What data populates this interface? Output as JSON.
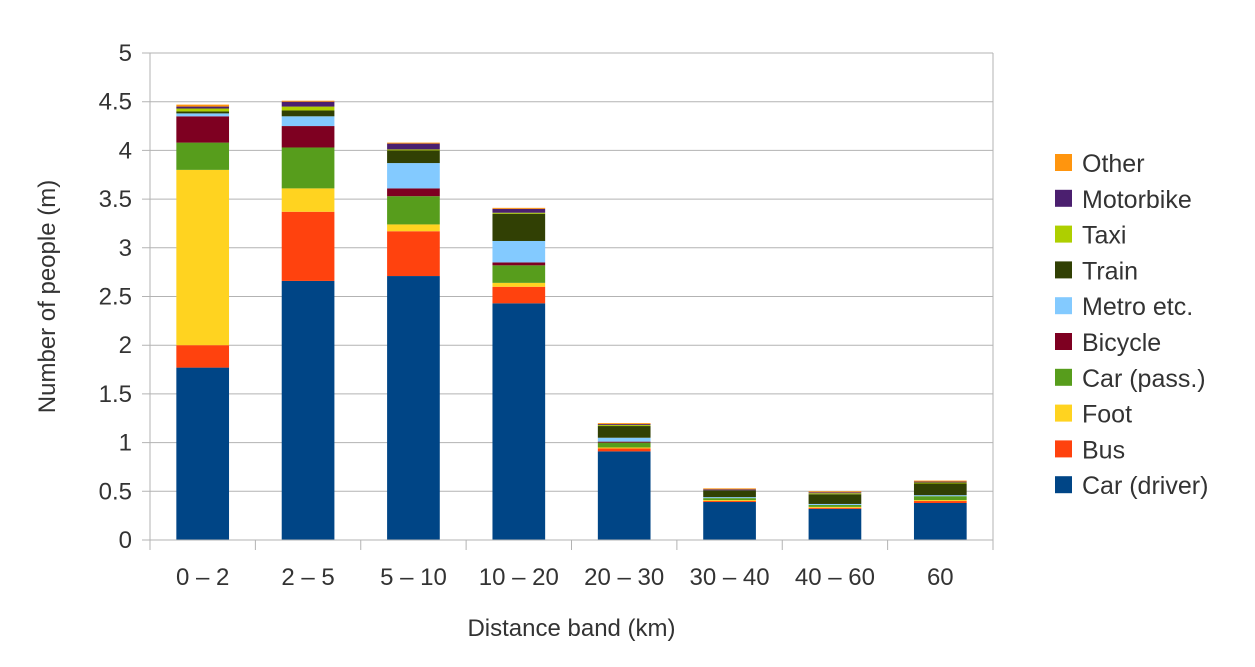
{
  "chart_data": {
    "type": "bar",
    "stacked": true,
    "title": "",
    "xlabel": "Distance band (km)",
    "ylabel": "Number of people (m)",
    "ylim": [
      0,
      5
    ],
    "yticks": [
      "0",
      "0.5",
      "1",
      "1.5",
      "2",
      "2.5",
      "3",
      "3.5",
      "4",
      "4.5",
      "5"
    ],
    "grid": true,
    "legend_position": "right",
    "categories": [
      "0 – 2",
      "2 – 5",
      "5 – 10",
      "10 – 20",
      "20 – 30",
      "30 – 40",
      "40 – 60",
      "60"
    ],
    "series": [
      {
        "name": "Car (driver)",
        "color": "#004586",
        "values": [
          1.77,
          2.66,
          2.71,
          2.43,
          0.91,
          0.39,
          0.32,
          0.38
        ]
      },
      {
        "name": "Bus",
        "color": "#ff420e",
        "values": [
          0.23,
          0.71,
          0.46,
          0.17,
          0.03,
          0.01,
          0.01,
          0.02
        ]
      },
      {
        "name": "Foot",
        "color": "#ffd320",
        "values": [
          1.8,
          0.24,
          0.07,
          0.04,
          0.01,
          0.01,
          0.01,
          0.01
        ]
      },
      {
        "name": "Car (pass.)",
        "color": "#579d1c",
        "values": [
          0.28,
          0.42,
          0.29,
          0.18,
          0.05,
          0.02,
          0.02,
          0.04
        ]
      },
      {
        "name": "Bicycle",
        "color": "#7e0021",
        "values": [
          0.27,
          0.22,
          0.08,
          0.03,
          0.01,
          0.0,
          0.0,
          0.0
        ]
      },
      {
        "name": "Metro etc.",
        "color": "#83caff",
        "values": [
          0.03,
          0.1,
          0.26,
          0.22,
          0.04,
          0.01,
          0.01,
          0.01
        ]
      },
      {
        "name": "Train",
        "color": "#314004",
        "values": [
          0.02,
          0.06,
          0.13,
          0.28,
          0.12,
          0.07,
          0.1,
          0.12
        ]
      },
      {
        "name": "Taxi",
        "color": "#aecf00",
        "values": [
          0.03,
          0.04,
          0.01,
          0.01,
          0.01,
          0.0,
          0.01,
          0.01
        ]
      },
      {
        "name": "Motorbike",
        "color": "#4b1f6f",
        "values": [
          0.02,
          0.05,
          0.06,
          0.04,
          0.01,
          0.01,
          0.01,
          0.01
        ]
      },
      {
        "name": "Other",
        "color": "#ff950e",
        "values": [
          0.02,
          0.01,
          0.01,
          0.01,
          0.01,
          0.01,
          0.01,
          0.01
        ]
      }
    ]
  }
}
